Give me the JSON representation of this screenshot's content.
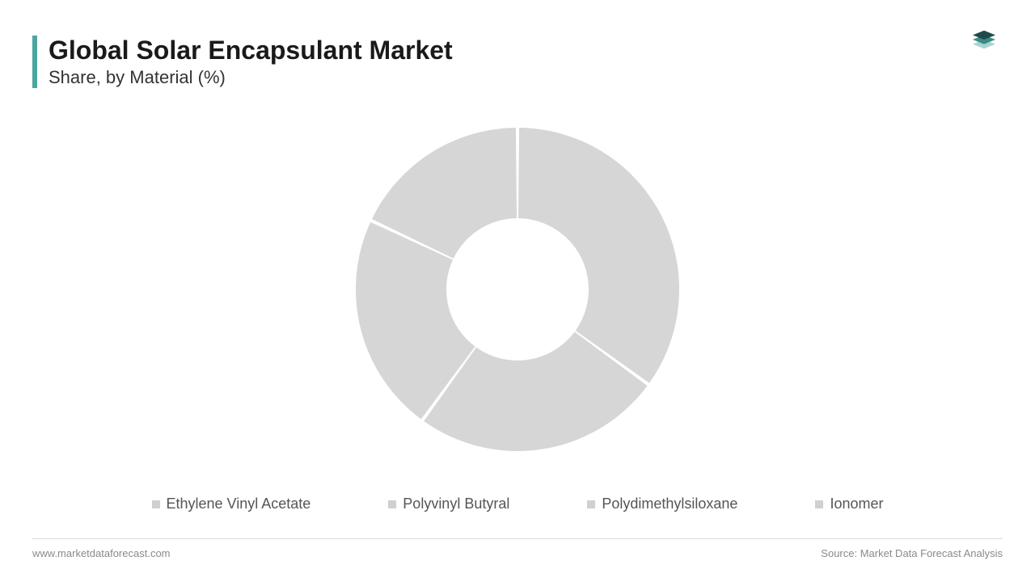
{
  "header": {
    "title": "Global Solar Encapsulant Market",
    "subtitle": "Share, by Material (%)",
    "accent_color": "#4aa6a0"
  },
  "logo": {
    "top_color": "#1f4a4a",
    "mid_color": "#3d8a87",
    "bottom_color": "#a8d5d1"
  },
  "chart": {
    "type": "donut",
    "outer_radius": 200,
    "inner_radius": 88,
    "gap_deg": 1.2,
    "background_color": "#ffffff",
    "segments": [
      {
        "label": "Ethylene Vinyl Acetate",
        "value": 35,
        "color": "#d6d6d6"
      },
      {
        "label": "Polyvinyl Butyral",
        "value": 25,
        "color": "#d6d6d6"
      },
      {
        "label": "Polydimethylsiloxane",
        "value": 22,
        "color": "#d6d6d6"
      },
      {
        "label": "Ionomer",
        "value": 18,
        "color": "#d6d6d6"
      }
    ],
    "divider_color": "#ffffff"
  },
  "legend": {
    "swatch_color": "#d0d0d0",
    "text_color": "#555555",
    "font_size": 18
  },
  "footer": {
    "left": "www.marketdataforecast.com",
    "right": "Source: Market Data Forecast Analysis",
    "text_color": "#8a8a8a",
    "border_color": "#d8d8d8"
  }
}
